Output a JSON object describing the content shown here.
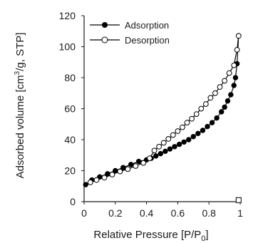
{
  "chart_data": {
    "type": "line",
    "xlabel": "Relative Pressure [P/P",
    "xlabel_sub": "0",
    "xlabel_end": "]",
    "ylabel": "Adsorbed volume [cm",
    "ylabel_sup": "3",
    "ylabel_end": "/g, STP]",
    "xlim": [
      0,
      1
    ],
    "ylim": [
      0,
      120
    ],
    "x_ticks": [
      "0",
      "0.2",
      "0.4",
      "0.6",
      "0.8",
      "1"
    ],
    "x_tick_values": [
      0,
      0.2,
      0.4,
      0.6,
      0.8,
      1.0
    ],
    "y_ticks": [
      "0",
      "20",
      "40",
      "60",
      "80",
      "100",
      "120"
    ],
    "y_tick_values": [
      0,
      20,
      40,
      60,
      80,
      100,
      120
    ],
    "grid": false,
    "legend_position": "top-left",
    "series": [
      {
        "name": "Adsorption",
        "marker": "filled-circle",
        "color": "#000000",
        "x": [
          0.01,
          0.05,
          0.1,
          0.15,
          0.2,
          0.25,
          0.3,
          0.35,
          0.4,
          0.43,
          0.46,
          0.49,
          0.52,
          0.55,
          0.58,
          0.61,
          0.64,
          0.67,
          0.7,
          0.73,
          0.76,
          0.79,
          0.82,
          0.85,
          0.88,
          0.9,
          0.92,
          0.94,
          0.96,
          0.97,
          0.98,
          0.99
        ],
        "y": [
          11,
          14,
          16,
          18,
          20,
          22,
          24,
          26,
          27,
          28,
          29.5,
          31,
          32.5,
          34,
          35.5,
          37,
          38.5,
          40,
          42,
          44,
          46,
          48.5,
          51,
          54,
          58,
          61,
          65,
          69,
          75,
          80,
          89,
          107
        ]
      },
      {
        "name": "Desorption",
        "marker": "open-circle",
        "color": "#000000",
        "x": [
          0.99,
          0.98,
          0.96,
          0.93,
          0.9,
          0.87,
          0.84,
          0.81,
          0.78,
          0.75,
          0.72,
          0.69,
          0.66,
          0.63,
          0.6,
          0.57,
          0.54,
          0.51,
          0.48,
          0.45,
          0.42,
          0.38,
          0.33,
          0.28,
          0.23,
          0.18,
          0.13,
          0.08,
          0.04
        ],
        "y": [
          107,
          98,
          88,
          83,
          78,
          74,
          70,
          67,
          63,
          60,
          56.5,
          53.5,
          51,
          48,
          45.5,
          43,
          40.5,
          38,
          35.5,
          33,
          28,
          25,
          23,
          21,
          19.5,
          17.5,
          15.5,
          14,
          12.5
        ]
      },
      {
        "name": "",
        "marker": "open-square",
        "color": "#000000",
        "x": [
          0.99
        ],
        "y": [
          1
        ]
      }
    ]
  }
}
